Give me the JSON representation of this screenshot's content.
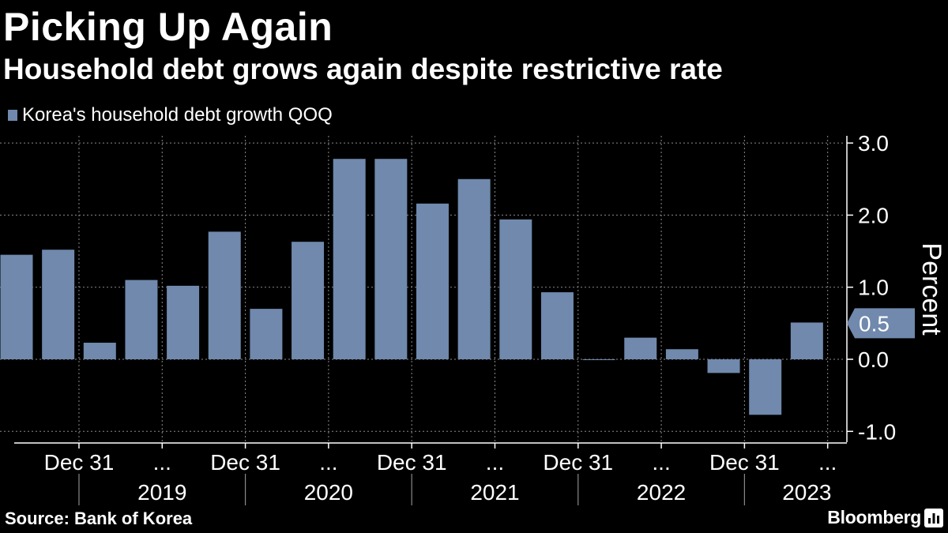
{
  "header": {
    "title": "Picking Up Again",
    "subtitle": "Household debt grows again despite restrictive rate"
  },
  "footer": {
    "source": "Source: Bank of Korea",
    "brand": "Bloomberg"
  },
  "colors": {
    "bar": "#7089AD",
    "background": "#000000",
    "text": "#FFFFFF",
    "grid": "#8A8A8A"
  },
  "chart_data": {
    "type": "bar",
    "legend": "Korea's household debt growth QOQ",
    "ylabel": "Percent",
    "ylim": [
      -1.15,
      3.1
    ],
    "yticks": [
      3.0,
      2.0,
      1.0,
      0.0,
      -1.0
    ],
    "ytick_labels": [
      "3.0",
      "2.0",
      "1.0",
      "0.0",
      "-1.0"
    ],
    "latest_value_label": "0.5",
    "latest_value": 0.5,
    "x_tick_labels": [
      "Dec 31",
      "...",
      "Dec 31",
      "...",
      "Dec 31",
      "...",
      "Dec 31",
      "...",
      "Dec 31",
      "..."
    ],
    "x_tick_positions": [
      1.5,
      3.5,
      5.5,
      7.5,
      9.5,
      11.5,
      13.5,
      15.5,
      17.5,
      19.5
    ],
    "years": [
      {
        "label": "2019",
        "start": 2,
        "end": 6
      },
      {
        "label": "2020",
        "start": 6,
        "end": 10
      },
      {
        "label": "2021",
        "start": 10,
        "end": 14
      },
      {
        "label": "2022",
        "start": 14,
        "end": 18
      },
      {
        "label": "2023",
        "start": 18,
        "end": 21
      }
    ],
    "values": [
      1.45,
      1.52,
      0.23,
      1.1,
      1.02,
      1.77,
      0.7,
      1.63,
      2.78,
      2.78,
      2.16,
      2.5,
      1.94,
      0.93,
      -0.01,
      0.3,
      0.14,
      -0.19,
      -0.77,
      0.51
    ]
  }
}
